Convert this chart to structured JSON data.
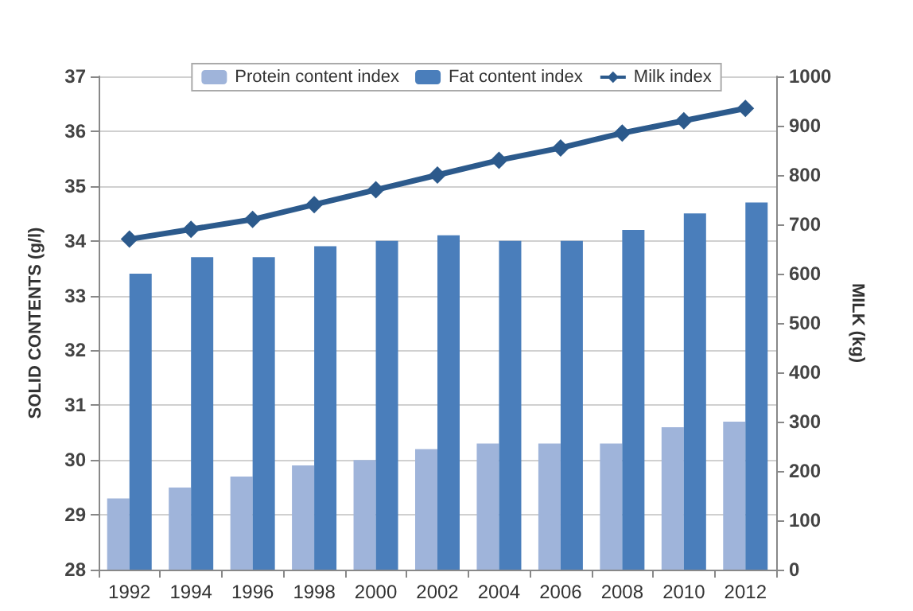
{
  "chart_data": {
    "type": "bar",
    "ylabel": "SOLID CONTENTS (g/l)",
    "y2label": "MILK (kg)",
    "categories": [
      "1992",
      "1994",
      "1996",
      "1998",
      "2000",
      "2002",
      "2004",
      "2006",
      "2008",
      "2010",
      "2012"
    ],
    "series": [
      {
        "name": "Protein content index",
        "color": "#9fb4da",
        "values": [
          29.3,
          29.5,
          29.7,
          29.9,
          30.0,
          30.2,
          30.3,
          30.3,
          30.3,
          30.6,
          30.7
        ]
      },
      {
        "name": "Fat content index",
        "color": "#4a7ebb",
        "values": [
          33.4,
          33.7,
          33.7,
          33.9,
          34.0,
          34.1,
          34.0,
          34.0,
          34.2,
          34.5,
          34.7
        ]
      },
      {
        "name": "Milk index",
        "type": "line",
        "axis": "y2",
        "color": "#2c5a8c",
        "marker": "diamond",
        "values": [
          670,
          690,
          710,
          740,
          770,
          800,
          830,
          855,
          885,
          910,
          935
        ]
      }
    ],
    "ylim": [
      28,
      37
    ],
    "yticks": [
      28,
      29,
      30,
      31,
      32,
      33,
      34,
      35,
      36,
      37
    ],
    "y2lim": [
      0,
      1000
    ],
    "y2ticks": [
      0,
      100,
      200,
      300,
      400,
      500,
      600,
      700,
      800,
      900,
      1000
    ],
    "grid": "y",
    "legend": "top"
  }
}
